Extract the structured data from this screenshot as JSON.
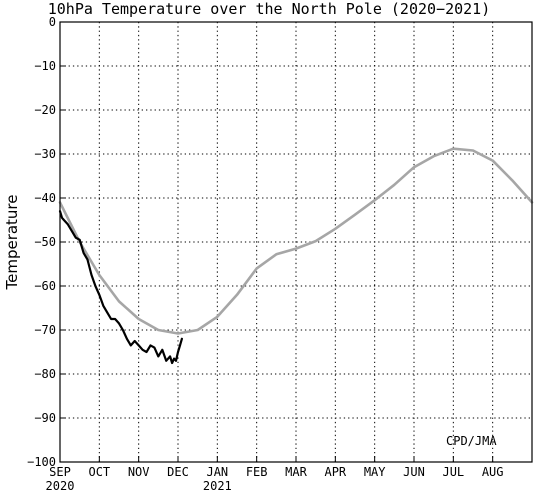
{
  "chart_data": {
    "type": "line",
    "title": "10hPa Temperature over the North Pole (2020−2021)",
    "ylabel": "Temperature",
    "credit": "CPD/JMA",
    "ylim": [
      -100,
      0
    ],
    "yticks": [
      0,
      -10,
      -20,
      -30,
      -40,
      -50,
      -60,
      -70,
      -80,
      -90,
      -100
    ],
    "ytick_labels": [
      "0",
      "−10",
      "−20",
      "−30",
      "−40",
      "−50",
      "−60",
      "−70",
      "−80",
      "−90",
      "−100"
    ],
    "xlim": [
      0,
      12
    ],
    "months": [
      {
        "label": "SEP",
        "year": "2020"
      },
      {
        "label": "OCT",
        "year": ""
      },
      {
        "label": "NOV",
        "year": ""
      },
      {
        "label": "DEC",
        "year": ""
      },
      {
        "label": "JAN",
        "year": "2021"
      },
      {
        "label": "FEB",
        "year": ""
      },
      {
        "label": "MAR",
        "year": ""
      },
      {
        "label": "APR",
        "year": ""
      },
      {
        "label": "MAY",
        "year": ""
      },
      {
        "label": "JUN",
        "year": ""
      },
      {
        "label": "JUL",
        "year": ""
      },
      {
        "label": "AUG",
        "year": ""
      }
    ],
    "grid": true,
    "series": [
      {
        "color": "#a6a6a6",
        "x": [
          0,
          0.5,
          1,
          1.5,
          2,
          2.5,
          3,
          3.5,
          4,
          4.5,
          5,
          5.5,
          6,
          6.5,
          7,
          7.5,
          8,
          8.5,
          9,
          9.5,
          10,
          10.5,
          11,
          11.5,
          12
        ],
        "y": [
          -41,
          -50,
          -57.5,
          -63.5,
          -67.5,
          -70,
          -70.8,
          -70,
          -67,
          -62,
          -56,
          -52.8,
          -51.5,
          -49.8,
          -47,
          -43.8,
          -40.5,
          -37,
          -33,
          -30.5,
          -28.8,
          -29.2,
          -31.5,
          -36,
          -41
        ]
      },
      {
        "color": "#000000",
        "x": [
          0,
          0.05,
          0.1,
          0.2,
          0.3,
          0.4,
          0.5,
          0.6,
          0.7,
          0.8,
          0.9,
          1,
          1.1,
          1.2,
          1.3,
          1.4,
          1.5,
          1.6,
          1.7,
          1.8,
          1.9,
          2,
          2.1,
          2.2,
          2.3,
          2.4,
          2.5,
          2.6,
          2.7,
          2.8,
          2.85,
          2.9,
          2.95,
          3.0,
          3.05,
          3.1
        ],
        "y": [
          -43,
          -44.5,
          -45,
          -46,
          -47.5,
          -49,
          -49.5,
          -52.5,
          -54,
          -57.5,
          -60,
          -62,
          -64.5,
          -66,
          -67.5,
          -67.5,
          -68.5,
          -70,
          -72,
          -73.5,
          -72.5,
          -73.5,
          -74.5,
          -75,
          -73.5,
          -74,
          -76,
          -74.5,
          -77,
          -76,
          -77.5,
          -76.5,
          -77,
          -75,
          -73.5,
          -72
        ]
      }
    ]
  }
}
